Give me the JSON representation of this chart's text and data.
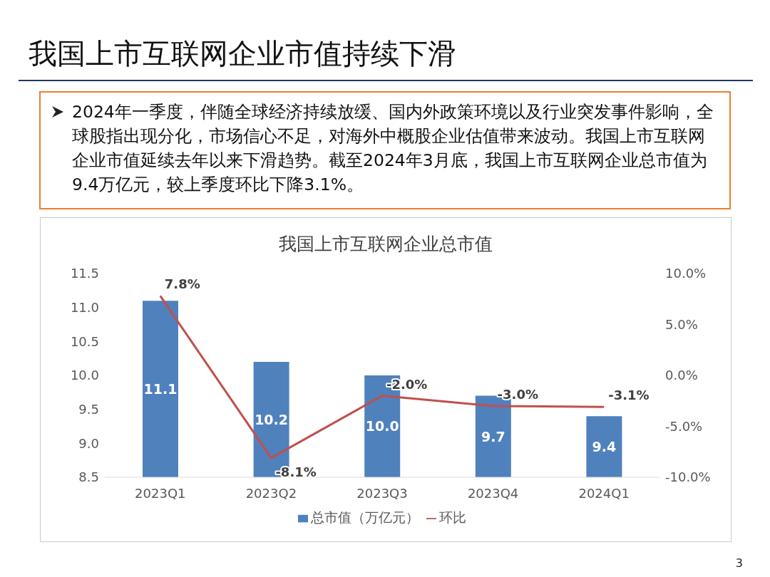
{
  "chart_data": {
    "type": "bar",
    "title": "我国上市互联网企业市值持续下滑",
    "subtitle": "我国上市互联网企业总市值",
    "annotations": [
      "2024年一季度，伴随全球经济持续放缓、国内外政策环境以及行业突发事件影响，全球股指出现分化，市场信心不足，对海外中概股企业估值带来波动。我国上市互联网企业市值延续去年以来下滑趋势。截至2024年3月底，我国上市互联网企业总市值为9.4万亿元，较上季度环比下降3.1%。",
      "3"
    ],
    "categories": [
      "2023Q1",
      "2023Q2",
      "2023Q3",
      "2023Q4",
      "2024Q1"
    ],
    "series": [
      {
        "name": "总市值（万亿元）",
        "color": "#4f81bd",
        "values": [
          11.1,
          10.2,
          10.0,
          9.7,
          9.4
        ],
        "value_labels": [
          "11.1",
          "10.2",
          "10.0",
          "9.7",
          "9.4"
        ]
      },
      {
        "name": "环比",
        "type": "line",
        "axis": "y2",
        "color": "#c0504d",
        "values": [
          7.8,
          -8.1,
          -2.0,
          -3.0,
          -3.1
        ],
        "value_labels": [
          "7.8%",
          "-8.1%",
          "-2.0%",
          "-3.0%",
          "-3.1%"
        ]
      }
    ],
    "ylim": [
      8.5,
      11.5
    ],
    "yticks": [
      8.5,
      {
        "value": 9,
        "label": "9.0"
      },
      9.5,
      {
        "value": 10,
        "label": "10.0"
      },
      10.5,
      {
        "value": 11,
        "label": "11.0"
      },
      11.5
    ],
    "y2lim": [
      -10,
      10
    ],
    "y2ticks": [
      {
        "value": -10,
        "label": "-10.0%"
      },
      {
        "value": -5,
        "label": "-5.0%"
      },
      {
        "value": 0,
        "label": "0.0%"
      },
      {
        "value": 5,
        "label": "5.0%"
      },
      {
        "value": 10,
        "label": "10.0%"
      }
    ],
    "grid": false,
    "legend": "bottom",
    "marker": "none",
    "line_style": "solid"
  }
}
